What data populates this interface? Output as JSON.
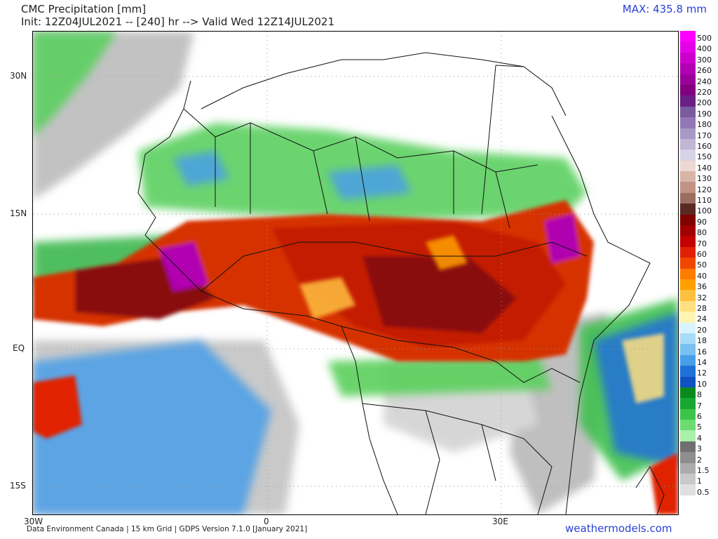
{
  "header": {
    "title": "CMC Precipitation [mm]",
    "init": "Init: 12Z04JUL2021 -- [240] hr --> Valid Wed 12Z14JUL2021",
    "max": "MAX: 435.8 mm"
  },
  "lat_labels": [
    "30N",
    "15N",
    "EQ",
    "15S"
  ],
  "lon_labels": [
    "30W",
    "0",
    "30E"
  ],
  "footer": {
    "credit": "Data Environment Canada | 15 km Grid | GDPS Version 7.1.0 [January 2021]",
    "site": "weathermodels.com"
  },
  "legend": [
    {
      "label": "500",
      "color": "#ff00ff"
    },
    {
      "label": "400",
      "color": "#e600e6"
    },
    {
      "label": "300",
      "color": "#cc00cc"
    },
    {
      "label": "260",
      "color": "#b300b3"
    },
    {
      "label": "240",
      "color": "#9a009a"
    },
    {
      "label": "220",
      "color": "#800080"
    },
    {
      "label": "200",
      "color": "#6a1f86"
    },
    {
      "label": "190",
      "color": "#7c5aa0"
    },
    {
      "label": "180",
      "color": "#9278b4"
    },
    {
      "label": "170",
      "color": "#a898c6"
    },
    {
      "label": "160",
      "color": "#c0b6d6"
    },
    {
      "label": "150",
      "color": "#d8d2e6"
    },
    {
      "label": "140",
      "color": "#efd8d2"
    },
    {
      "label": "130",
      "color": "#d9b4a8"
    },
    {
      "label": "120",
      "color": "#c29284"
    },
    {
      "label": "110",
      "color": "#9c6e60"
    },
    {
      "label": "100",
      "color": "#5a2a22"
    },
    {
      "label": "90",
      "color": "#800000"
    },
    {
      "label": "80",
      "color": "#a00000"
    },
    {
      "label": "70",
      "color": "#c40000"
    },
    {
      "label": "60",
      "color": "#e02000"
    },
    {
      "label": "50",
      "color": "#f04600"
    },
    {
      "label": "40",
      "color": "#ff7a00"
    },
    {
      "label": "36",
      "color": "#ffa000"
    },
    {
      "label": "32",
      "color": "#ffc040"
    },
    {
      "label": "28",
      "color": "#ffe080"
    },
    {
      "label": "24",
      "color": "#fff4b0"
    },
    {
      "label": "20",
      "color": "#d8f4ff"
    },
    {
      "label": "18",
      "color": "#a8dcf8"
    },
    {
      "label": "16",
      "color": "#78c0f0"
    },
    {
      "label": "14",
      "color": "#4a9ee8"
    },
    {
      "label": "12",
      "color": "#2070d8"
    },
    {
      "label": "10",
      "color": "#1050c0"
    },
    {
      "label": "8",
      "color": "#0a8a1e"
    },
    {
      "label": "7",
      "color": "#18a830"
    },
    {
      "label": "6",
      "color": "#3cc448"
    },
    {
      "label": "5",
      "color": "#6cdc70"
    },
    {
      "label": "4",
      "color": "#aaf0a8"
    },
    {
      "label": "3",
      "color": "#707070"
    },
    {
      "label": "2",
      "color": "#8e8e8e"
    },
    {
      "label": "1.5",
      "color": "#acacac"
    },
    {
      "label": "1",
      "color": "#c8c8c8"
    },
    {
      "label": "0.5",
      "color": "#e0e0e0"
    }
  ]
}
